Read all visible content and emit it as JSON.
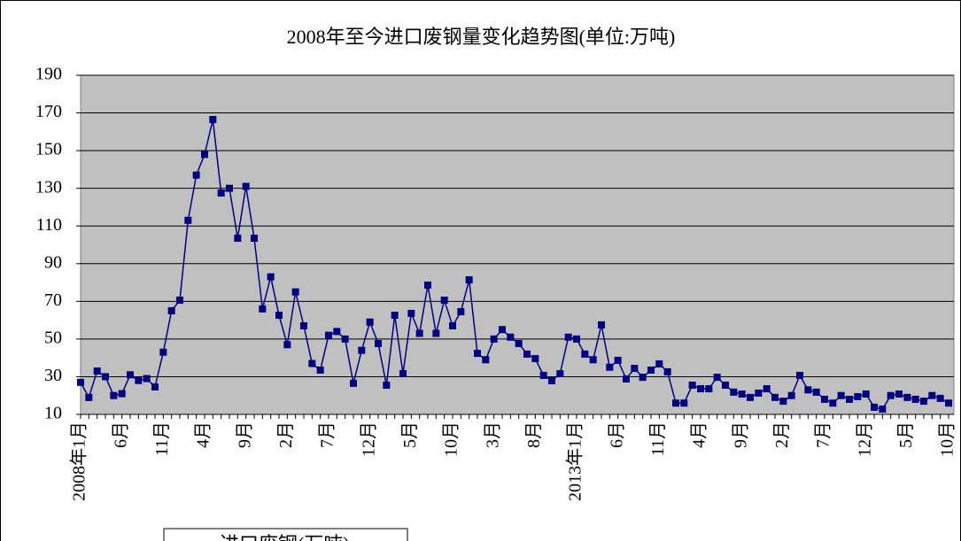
{
  "chart_data": {
    "type": "line",
    "title": "2008年至今进口废钢量变化趋势图(单位:万吨)",
    "categories": [
      "2008年1月",
      null,
      null,
      null,
      null,
      "6月",
      null,
      null,
      null,
      null,
      "11月",
      null,
      null,
      null,
      null,
      "4月",
      null,
      null,
      null,
      null,
      "9月",
      null,
      null,
      null,
      null,
      "2月",
      null,
      null,
      null,
      null,
      "7月",
      null,
      null,
      null,
      null,
      "12月",
      null,
      null,
      null,
      null,
      "5月",
      null,
      null,
      null,
      null,
      "10月",
      null,
      null,
      null,
      null,
      "3月",
      null,
      null,
      null,
      null,
      "8月",
      null,
      null,
      null,
      null,
      "2013年1月",
      null,
      null,
      null,
      null,
      "6月",
      null,
      null,
      null,
      null,
      "11月",
      null,
      null,
      null,
      null,
      "4月",
      null,
      null,
      null,
      null,
      "9月",
      null,
      null,
      null,
      null,
      "2月",
      null,
      null,
      null,
      null,
      "7月",
      null,
      null,
      null,
      null,
      "12月",
      null,
      null,
      null,
      null,
      "5月",
      null,
      null,
      null,
      null,
      "10月"
    ],
    "series": [
      {
        "name": "进口废钢(万吨)",
        "color": "#000080",
        "values": [
          27,
          19,
          33,
          30,
          20,
          21,
          31,
          28,
          29,
          24.6,
          43,
          65,
          70.6,
          113,
          137,
          148,
          166.5,
          127.5,
          130,
          103.5,
          131,
          103.5,
          66,
          83,
          62.6,
          47,
          75,
          57,
          37,
          33.5,
          52,
          54,
          50,
          26.5,
          44,
          59,
          47.6,
          25.5,
          62.6,
          31.6,
          63.6,
          53,
          78.6,
          53,
          70.6,
          57,
          64.5,
          81.4,
          42.4,
          39,
          50,
          55,
          51,
          47.6,
          42,
          39.6,
          30.7,
          27.9,
          31.6,
          51,
          50,
          42,
          39,
          57.5,
          35,
          38.7,
          28.8,
          34.4,
          29.7,
          33.5,
          36.8,
          32.6,
          16,
          16,
          25.5,
          23.6,
          23.6,
          29.7,
          25.5,
          21.8,
          20.8,
          19,
          21.3,
          23.6,
          19,
          17,
          20,
          30.7,
          23,
          21.8,
          18,
          16,
          20,
          18,
          19.4,
          20.8,
          13.8,
          12.8,
          20,
          20.8,
          19,
          18,
          17,
          20,
          18.5,
          16
        ]
      }
    ],
    "ylim": [
      10,
      190
    ],
    "yticks": [
      10,
      30,
      50,
      70,
      90,
      110,
      130,
      150,
      170,
      190
    ],
    "grid": true,
    "legend": "bottom-left"
  }
}
